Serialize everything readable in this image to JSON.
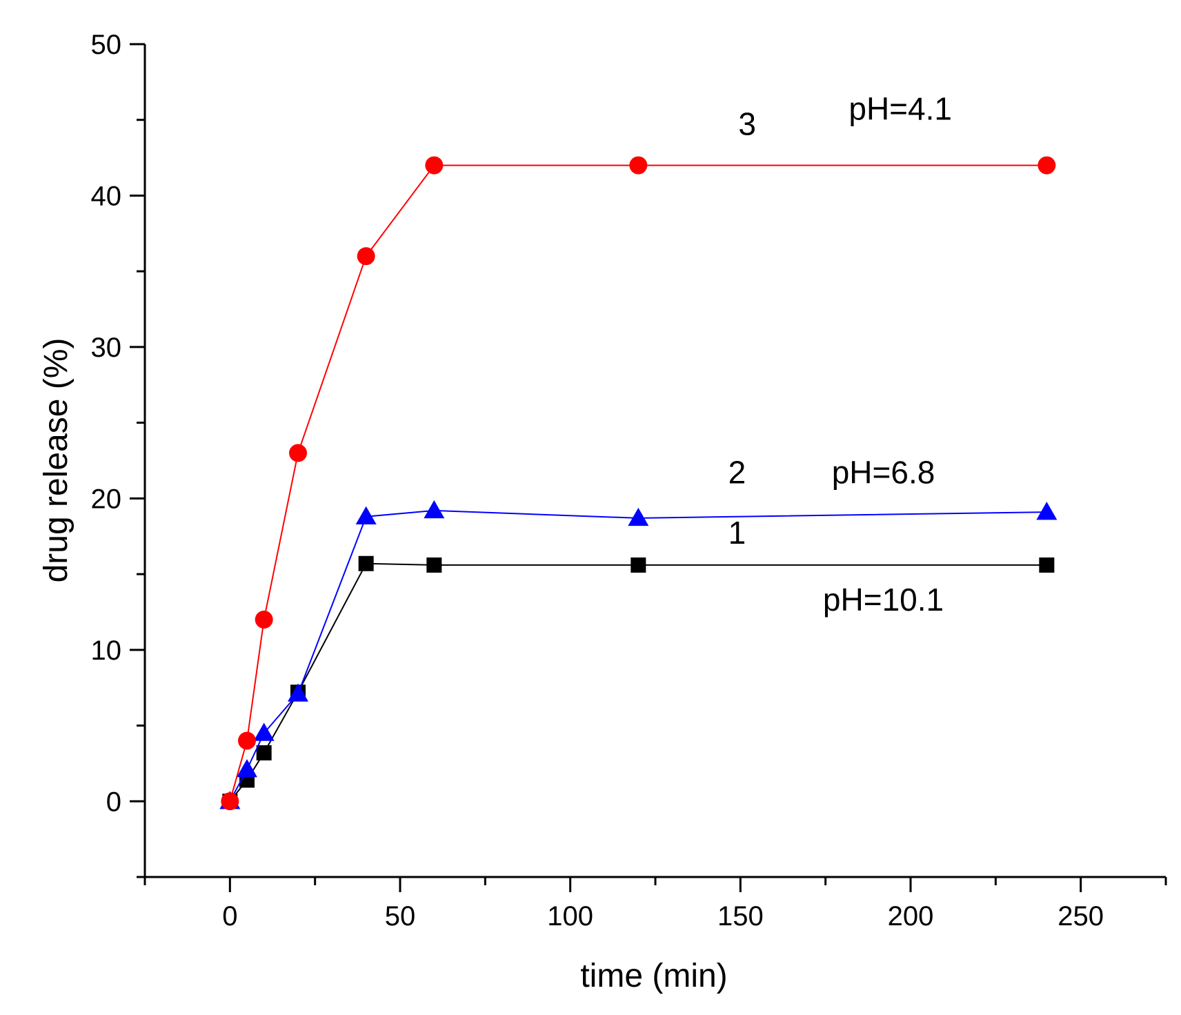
{
  "chart_data": {
    "type": "line",
    "title": "",
    "xlabel": "time (min)",
    "ylabel": "drug release (%)",
    "xlim": [
      -25,
      275
    ],
    "ylim": [
      -5,
      50
    ],
    "xticks": [
      0,
      50,
      100,
      150,
      200,
      250
    ],
    "yticks": [
      0,
      10,
      20,
      30,
      40,
      50
    ],
    "series": [
      {
        "name": "1",
        "label": "pH=10.1",
        "color": "#000000",
        "marker": "square",
        "x": [
          0,
          5,
          10,
          20,
          40,
          60,
          120,
          240
        ],
        "y": [
          0,
          1.4,
          3.2,
          7.2,
          15.7,
          15.6,
          15.6,
          15.6
        ]
      },
      {
        "name": "2",
        "label": "pH=6.8",
        "color": "#0000ff",
        "marker": "triangle",
        "x": [
          0,
          5,
          10,
          20,
          40,
          60,
          120,
          240
        ],
        "y": [
          0,
          2.1,
          4.5,
          7.1,
          18.8,
          19.2,
          18.7,
          19.1
        ]
      },
      {
        "name": "3",
        "label": "pH=4.1",
        "color": "#ff0000",
        "marker": "circle",
        "x": [
          0,
          5,
          10,
          20,
          40,
          60,
          120,
          240
        ],
        "y": [
          0,
          4,
          12,
          23,
          36,
          42,
          42,
          42
        ]
      }
    ],
    "annotations": [
      {
        "id": "num-3",
        "text": "3",
        "x": 152,
        "y": 44
      },
      {
        "id": "ph-3",
        "text": "pH=4.1",
        "x": 197,
        "y": 45
      },
      {
        "id": "num-2",
        "text": "2",
        "x": 149,
        "y": 21
      },
      {
        "id": "ph-2",
        "text": "pH=6.8",
        "x": 192,
        "y": 21
      },
      {
        "id": "num-1",
        "text": "1",
        "x": 149,
        "y": 17
      },
      {
        "id": "ph-1",
        "text": "pH=10.1",
        "x": 192,
        "y": 12.6
      }
    ]
  }
}
